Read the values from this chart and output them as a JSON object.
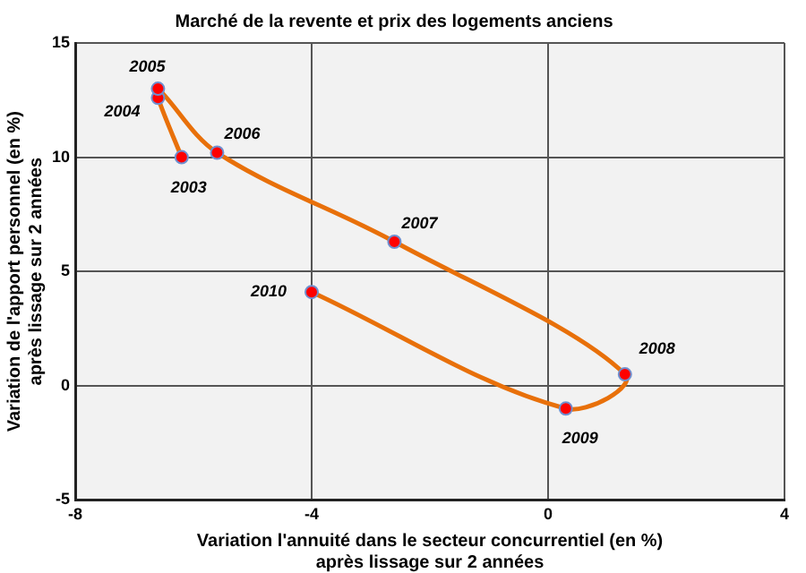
{
  "chart_data": {
    "type": "line",
    "title": "Marché de la revente et prix des logements anciens",
    "xlabel": "Variation l'annuité dans le secteur concurrentiel (en %)\naprès lissage sur 2 années",
    "ylabel": "Variation de l'apport personnel (en %)\naprès lissage sur 2 années",
    "series": [
      {
        "color": "#e8700a",
        "colors": [
          "#ff0000",
          "#ff0000",
          "#ff0000",
          "#ff0000",
          "#ff0000",
          "#ff0000",
          "#ff0000",
          "#ff0000"
        ],
        "x": [
          -6.2,
          -6.6,
          -6.6,
          -5.6,
          -2.6,
          1.3,
          0.3,
          -4.0
        ],
        "values": [
          10.0,
          12.6,
          13.0,
          10.2,
          6.3,
          0.5,
          -1.0,
          4.1
        ]
      }
    ],
    "annotations": [
      {
        "text": "2003",
        "x": -6.2,
        "y": 10.0
      },
      {
        "text": "2004",
        "x": -6.6,
        "y": 12.6
      },
      {
        "text": "2005",
        "x": -6.6,
        "y": 13.0
      },
      {
        "text": "2006",
        "x": -5.6,
        "y": 10.2
      },
      {
        "text": "2007",
        "x": -2.6,
        "y": 6.3
      },
      {
        "text": "2008",
        "x": 1.3,
        "y": 0.5
      },
      {
        "text": "2009",
        "x": 0.3,
        "y": -1.0
      },
      {
        "text": "2010",
        "x": -4.0,
        "y": 4.1
      }
    ],
    "xlim": [
      -8,
      4
    ],
    "xticks": [
      -8,
      -4,
      0,
      4
    ],
    "ylim": [
      -5,
      15
    ],
    "yticks": [
      -5,
      0,
      5,
      10,
      15
    ],
    "grid": true,
    "legend": false,
    "marker": "circle",
    "line_style": "solid"
  }
}
